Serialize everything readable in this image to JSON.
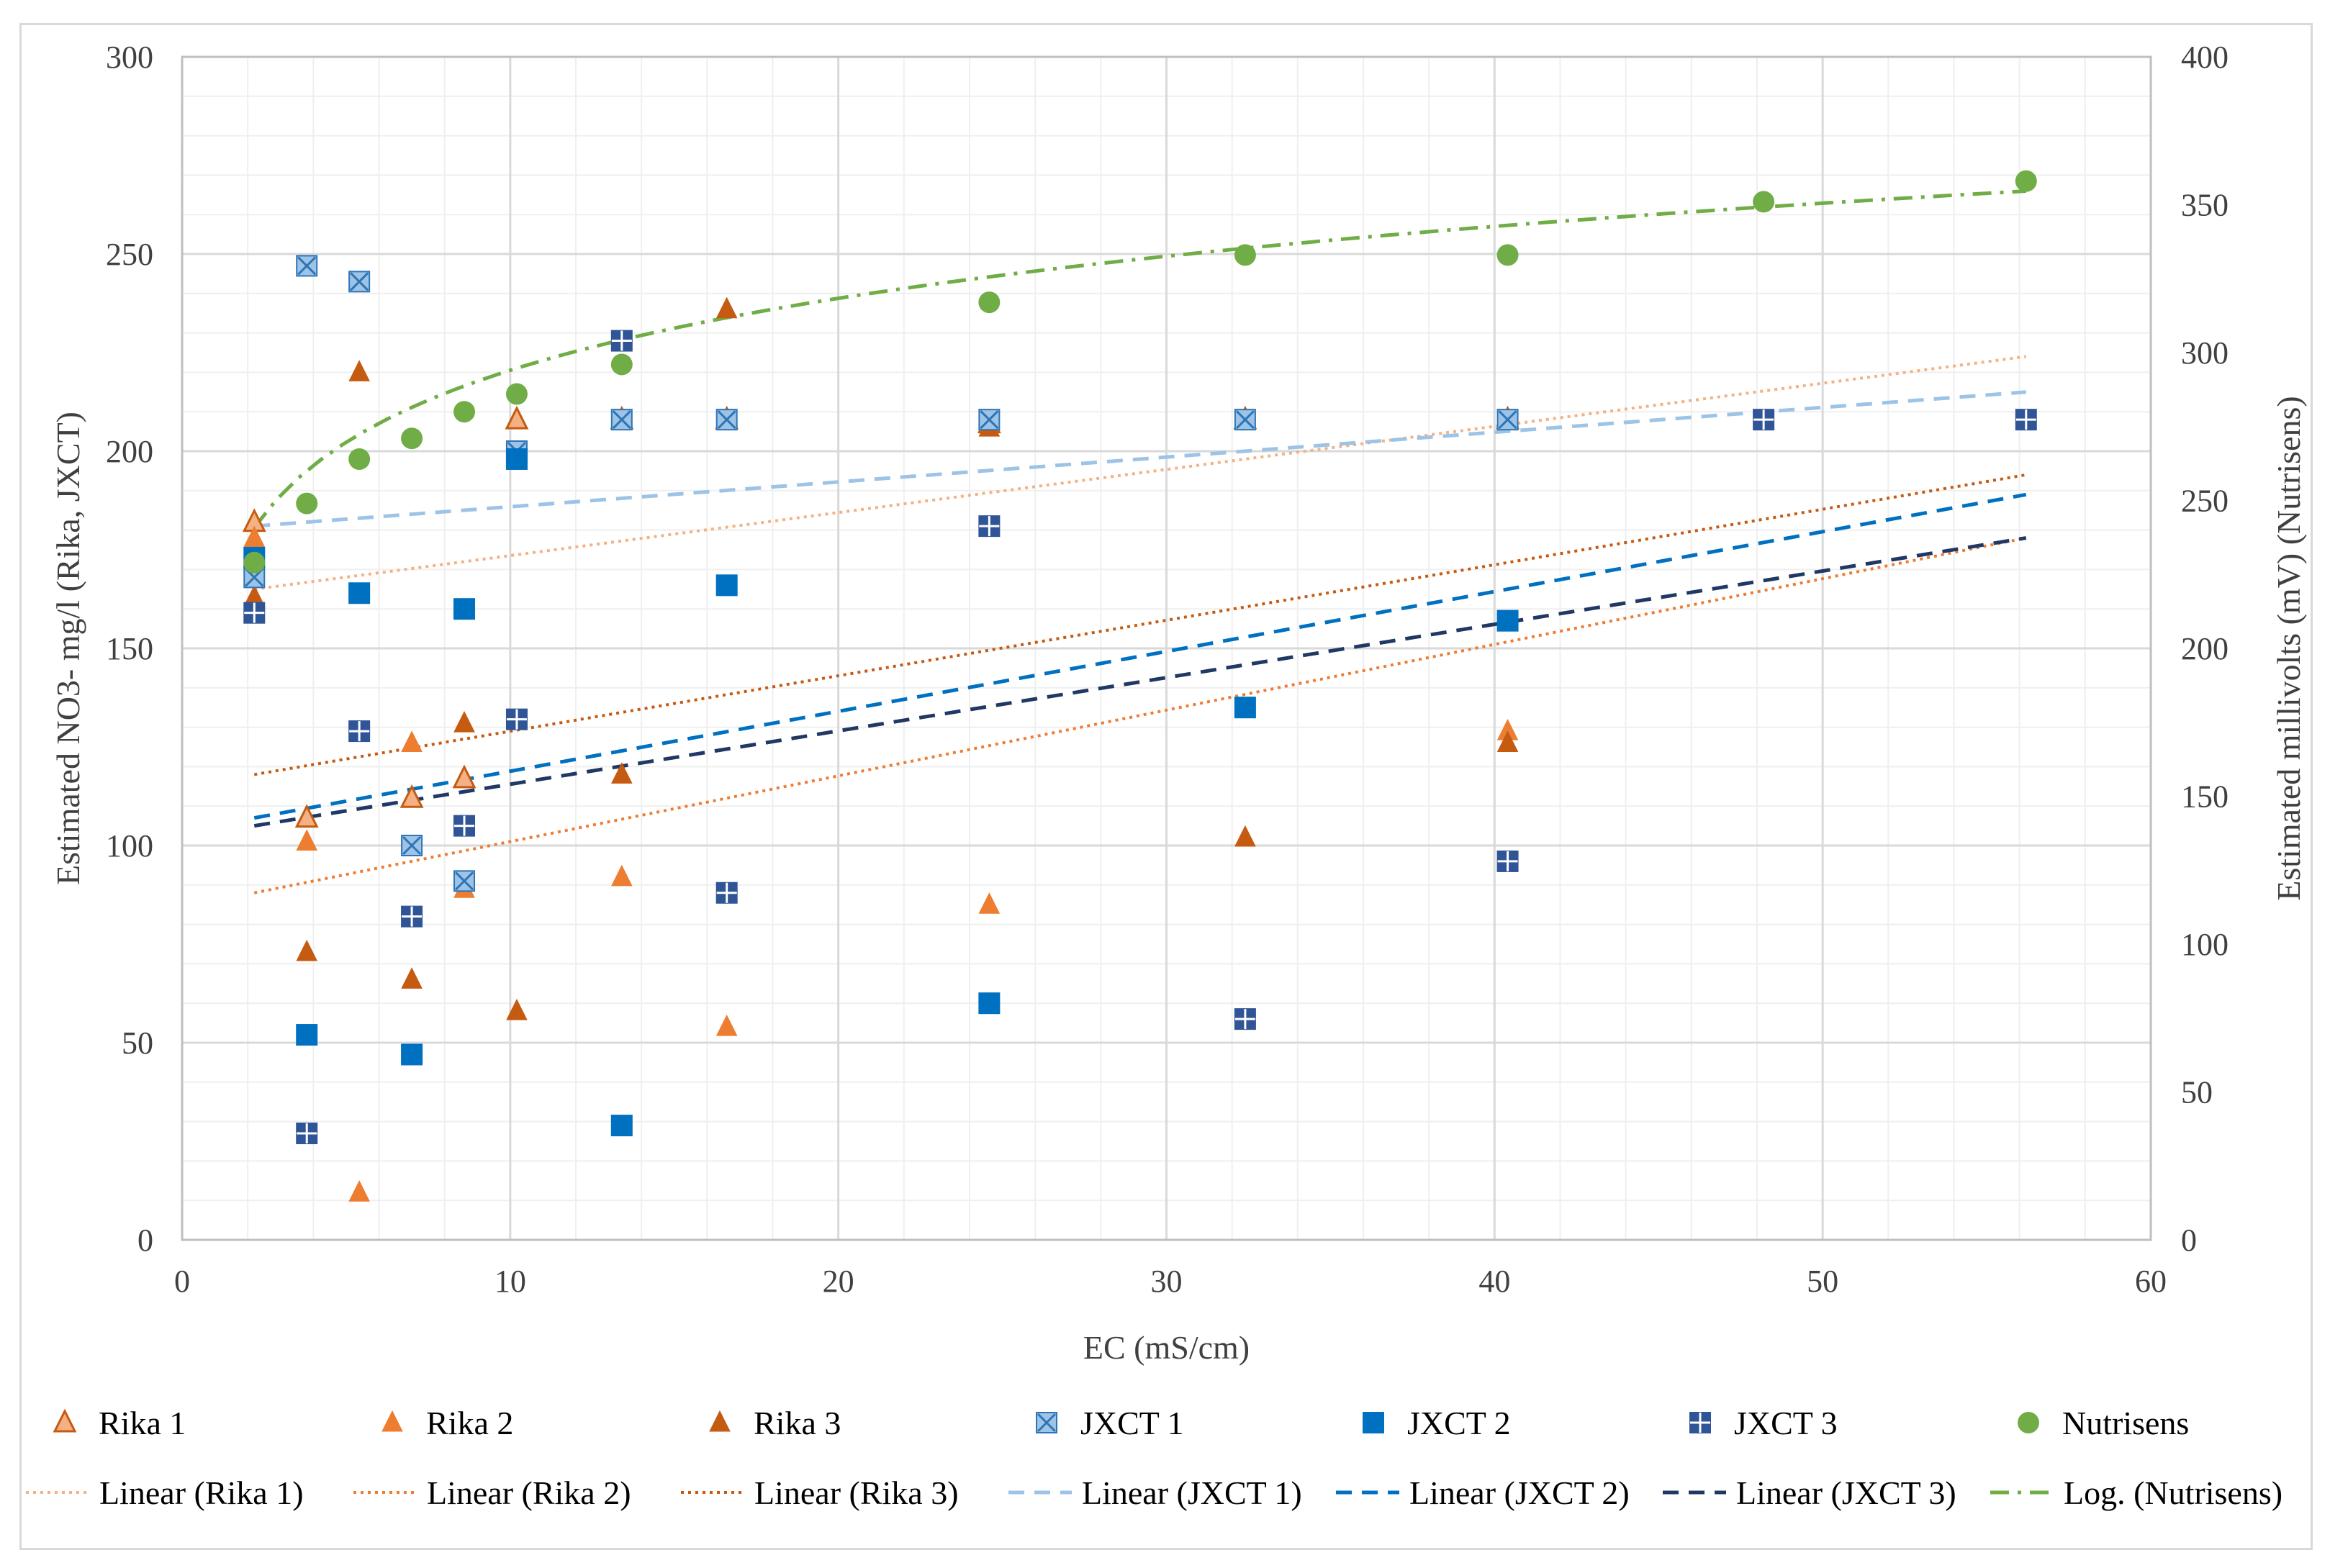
{
  "chart_data": {
    "type": "scatter",
    "xlabel": "EC (mS/cm)",
    "ylabel": "Estimated  NO3- mg/l (Rika, JXCT)",
    "y2label": "Estimated millivolts (mV) (Nutrisens)",
    "xlim": [
      0,
      60
    ],
    "ylim": [
      0,
      300
    ],
    "y2lim": [
      0,
      400
    ],
    "xticks": [
      "0",
      "10",
      "20",
      "30",
      "40",
      "50",
      "60"
    ],
    "yticks": [
      "0",
      "50",
      "100",
      "150",
      "200",
      "250",
      "300"
    ],
    "y2ticks": [
      "0",
      "50",
      "100",
      "150",
      "200",
      "250",
      "300",
      "350",
      "400"
    ],
    "grid": true,
    "legend_position": "bottom",
    "series": [
      {
        "name": "Rika 1",
        "marker": "triangle-light",
        "color": "#f4b183",
        "stroke": "#c55a11",
        "axis": "left",
        "x": [
          2.2,
          3.8,
          7.0,
          8.6,
          10.2,
          13.4,
          16.6,
          24.6,
          32.4,
          40.4
        ],
        "y": [
          182,
          107,
          112,
          117,
          208,
          208,
          208,
          207,
          208,
          208
        ]
      },
      {
        "name": "Rika 2",
        "marker": "triangle",
        "color": "#ed7d31",
        "axis": "left",
        "x": [
          2.2,
          3.8,
          5.4,
          7.0,
          8.6,
          13.4,
          16.6,
          24.6,
          32.4,
          40.4
        ],
        "y": [
          178,
          101,
          12,
          126,
          89,
          92,
          54,
          85,
          102,
          129
        ]
      },
      {
        "name": "Rika 3",
        "marker": "triangle",
        "color": "#c55a11",
        "axis": "left",
        "x": [
          2.2,
          3.8,
          5.4,
          7.0,
          8.6,
          10.2,
          13.4,
          16.6,
          24.6,
          32.4,
          40.4
        ],
        "y": [
          163,
          73,
          220,
          66,
          131,
          58,
          118,
          236,
          206,
          102,
          126
        ]
      },
      {
        "name": "JXCT 1",
        "marker": "square-x",
        "color": "#9dc3e6",
        "stroke": "#2e75b6",
        "axis": "left",
        "x": [
          2.2,
          3.8,
          5.4,
          7.0,
          8.6,
          10.2,
          13.4,
          16.6,
          24.6,
          32.4,
          40.4
        ],
        "y": [
          168,
          247,
          243,
          100,
          91,
          200,
          208,
          208,
          208,
          208,
          208
        ]
      },
      {
        "name": "JXCT 2",
        "marker": "square",
        "color": "#0070c0",
        "axis": "left",
        "x": [
          2.2,
          3.8,
          5.4,
          7.0,
          8.6,
          10.2,
          13.4,
          16.6,
          24.6,
          32.4,
          40.4
        ],
        "y": [
          173,
          52,
          164,
          47,
          160,
          198,
          29,
          166,
          60,
          135,
          157
        ]
      },
      {
        "name": "JXCT 3",
        "marker": "square-plus",
        "color": "#2f5597",
        "axis": "left",
        "x": [
          2.2,
          3.8,
          5.4,
          7.0,
          8.6,
          10.2,
          13.4,
          16.6,
          24.6,
          32.4,
          40.4,
          48.2,
          56.2
        ],
        "y": [
          159,
          27,
          129,
          82,
          105,
          132,
          228,
          88,
          181,
          56,
          96,
          208,
          208
        ]
      },
      {
        "name": "Nutrisens",
        "marker": "circle",
        "color": "#70ad47",
        "axis": "right",
        "x": [
          2.2,
          3.8,
          5.4,
          7.0,
          8.6,
          10.2,
          13.4,
          24.6,
          32.4,
          40.4,
          48.2,
          56.2
        ],
        "y": [
          229,
          249,
          264,
          271,
          280,
          286,
          296,
          317,
          333,
          333,
          351,
          358
        ]
      }
    ],
    "trendlines": [
      {
        "name": "Linear (Rika 1)",
        "type": "linear",
        "style": "dotted",
        "color": "#f4b183",
        "axis": "left",
        "x": [
          2.2,
          56.2
        ],
        "y": [
          165,
          224
        ]
      },
      {
        "name": "Linear (Rika 2)",
        "type": "linear",
        "style": "dotted",
        "color": "#ed7d31",
        "axis": "left",
        "x": [
          2.2,
          56.2
        ],
        "y": [
          88,
          178
        ]
      },
      {
        "name": "Linear (Rika 3)",
        "type": "linear",
        "style": "dotted",
        "color": "#c55a11",
        "axis": "left",
        "x": [
          2.2,
          56.2
        ],
        "y": [
          118,
          194
        ]
      },
      {
        "name": "Linear (JXCT 1)",
        "type": "linear",
        "style": "dashed",
        "color": "#9dc3e6",
        "axis": "left",
        "x": [
          2.2,
          56.2
        ],
        "y": [
          181,
          215
        ]
      },
      {
        "name": "Linear (JXCT 2)",
        "type": "linear",
        "style": "dashed",
        "color": "#0070c0",
        "axis": "left",
        "x": [
          2.2,
          56.2
        ],
        "y": [
          107,
          189
        ]
      },
      {
        "name": "Linear (JXCT 3)",
        "type": "linear",
        "style": "dashed",
        "color": "#203864",
        "axis": "left",
        "x": [
          2.2,
          56.2
        ],
        "y": [
          105,
          178
        ]
      },
      {
        "name": "Log. (Nutrisens)",
        "type": "log",
        "style": "dash-dot",
        "color": "#70ad47",
        "axis": "right",
        "a": 213.2,
        "b": 35.1,
        "x": [
          2.2,
          56.2
        ]
      }
    ]
  }
}
